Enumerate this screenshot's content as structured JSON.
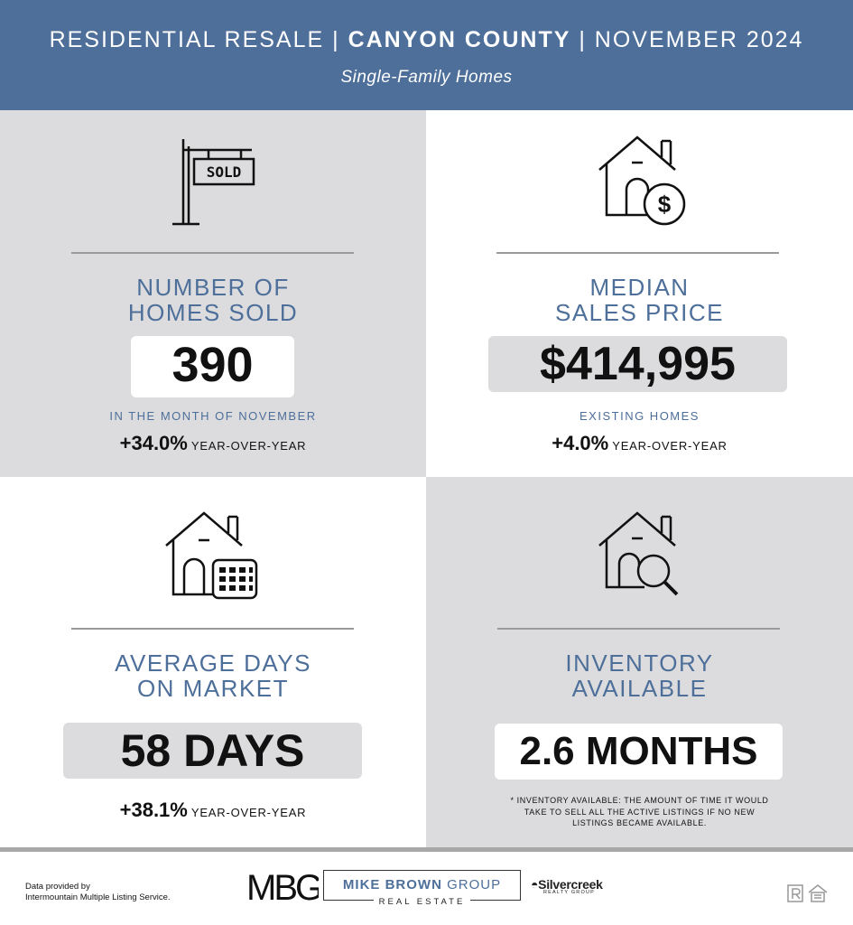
{
  "header": {
    "title_part1": "RESIDENTIAL RESALE | ",
    "title_bold": "CANYON COUNTY",
    "title_part2": " | NOVEMBER 2024",
    "subtitle": "Single-Family Homes"
  },
  "homes_sold": {
    "icon": "sold-sign-icon",
    "sign_text": "SOLD",
    "heading_line1": "NUMBER OF",
    "heading_line2": "HOMES SOLD",
    "value": "390",
    "note": "IN THE MONTH OF NOVEMBER",
    "change": "+34.0%",
    "change_label": "YEAR-OVER-YEAR"
  },
  "median_price": {
    "icon": "house-dollar-icon",
    "heading_line1": "MEDIAN",
    "heading_line2": "SALES PRICE",
    "value": "$414,995",
    "note": "EXISTING HOMES",
    "change": "+4.0%",
    "change_label": "YEAR-OVER-YEAR"
  },
  "days_on_market": {
    "icon": "house-calendar-icon",
    "heading_line1": "AVERAGE DAYS",
    "heading_line2": "ON MARKET",
    "value": "58 DAYS",
    "change": "+38.1%",
    "change_label": "YEAR-OVER-YEAR"
  },
  "inventory": {
    "icon": "house-magnifier-icon",
    "heading_line1": "INVENTORY",
    "heading_line2": "AVAILABLE",
    "value": "2.6 MONTHS",
    "footnote_line1": "* INVENTORY AVAILABLE: THE AMOUNT OF TIME IT WOULD",
    "footnote_line2": "TAKE TO SELL ALL THE ACTIVE LISTINGS IF NO NEW",
    "footnote_line3": "LISTINGS BECAME AVAILABLE."
  },
  "footer": {
    "data_line1": "Data provided by",
    "data_line2": "Intermountain Multiple Listing Service.",
    "mbg_mark": "MBG",
    "brand_bold": "MIKE BROWN",
    "brand_rest": " GROUP",
    "brand_sub": "REAL ESTATE",
    "partner_name": "Silvercreek",
    "partner_sub": "REALTY GROUP"
  },
  "colors": {
    "accent_blue": "#4d6f9a",
    "panel_gray": "#dcdcde"
  }
}
